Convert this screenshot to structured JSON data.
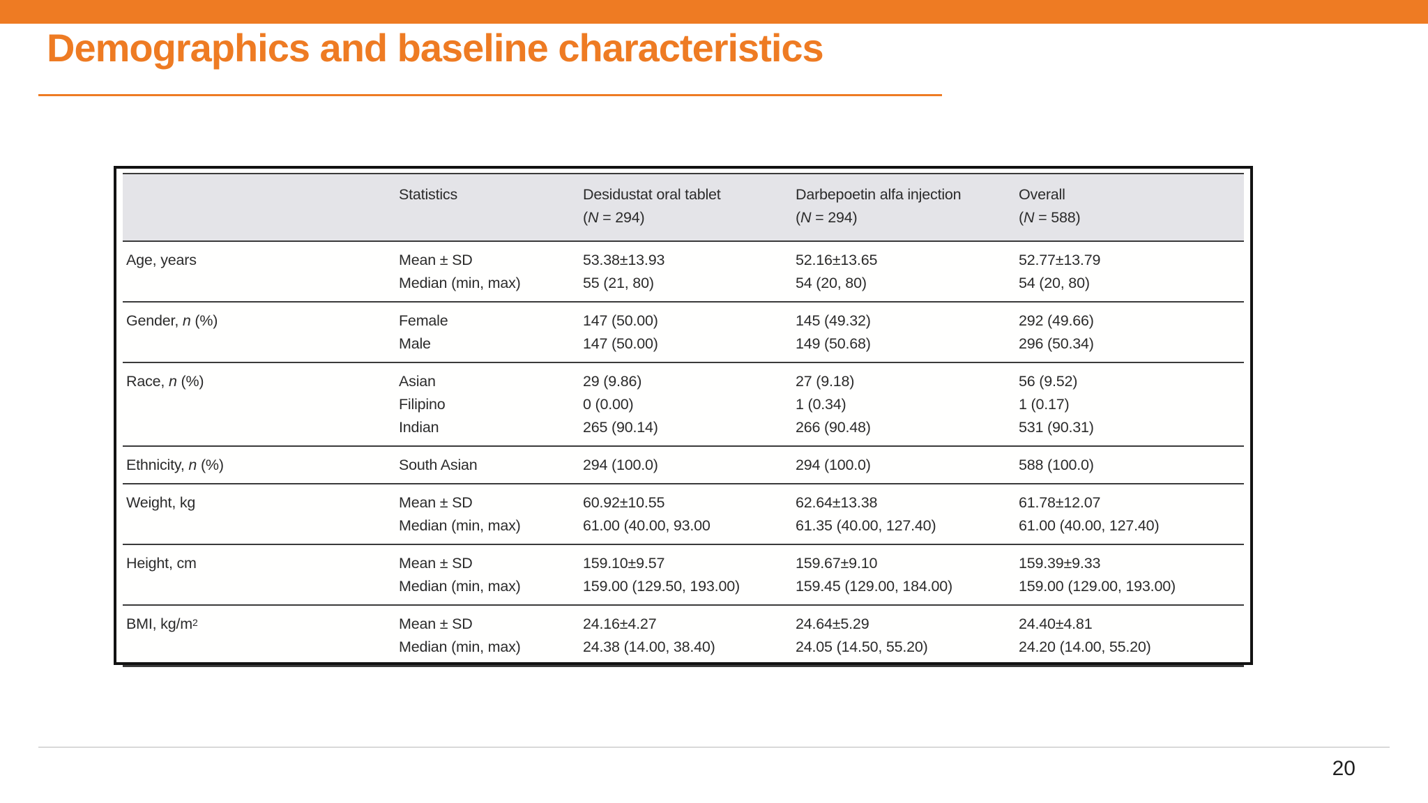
{
  "slide": {
    "title": "Demographics and baseline characteristics",
    "page_number": "20"
  },
  "colors": {
    "accent": "#EE7B23",
    "header_bg": "#E4E4E8",
    "frame": "#121212",
    "rule": "#3A3A3A",
    "table_text": "#2B2B2B",
    "footer_line": "#D9D9D9",
    "page_text": "#1F1F1F"
  },
  "table": {
    "columns": {
      "statistics": {
        "title": "Statistics"
      },
      "desidustat": {
        "title": "Desidustat oral tablet",
        "n_open": "(",
        "n_sym": "N",
        "n_rest": " = 294)"
      },
      "darbepoetin": {
        "title": "Darbepoetin alfa injection",
        "n_open": "(",
        "n_sym": "N",
        "n_rest": " = 294)"
      },
      "overall": {
        "title": "Overall",
        "n_open": "(",
        "n_sym": "N",
        "n_rest": " = 588)"
      }
    },
    "rows": [
      {
        "label": {
          "pre": "Age, years"
        },
        "stats": [
          "Mean ± SD",
          "Median (min, max)"
        ],
        "c1": [
          "53.38±13.93",
          "55 (21, 80)"
        ],
        "c2": [
          "52.16±13.65",
          "54 (20, 80)"
        ],
        "c3": [
          "52.77±13.79",
          "54 (20, 80)"
        ]
      },
      {
        "label": {
          "pre": "Gender, ",
          "it": "n",
          "post": " (%)"
        },
        "stats": [
          "Female",
          "Male"
        ],
        "c1": [
          "147 (50.00)",
          "147 (50.00)"
        ],
        "c2": [
          "145 (49.32)",
          "149 (50.68)"
        ],
        "c3": [
          "292 (49.66)",
          "296 (50.34)"
        ]
      },
      {
        "label": {
          "pre": "Race, ",
          "it": "n",
          "post": " (%)"
        },
        "stats": [
          "Asian",
          "Filipino",
          "Indian"
        ],
        "c1": [
          "29 (9.86)",
          "0 (0.00)",
          "265 (90.14)"
        ],
        "c2": [
          "27 (9.18)",
          "1 (0.34)",
          "266 (90.48)"
        ],
        "c3": [
          "56 (9.52)",
          "1 (0.17)",
          "531 (90.31)"
        ]
      },
      {
        "label": {
          "pre": "Ethnicity, ",
          "it": "n",
          "post": " (%)"
        },
        "stats": [
          "South Asian"
        ],
        "c1": [
          "294 (100.0)"
        ],
        "c2": [
          "294 (100.0)"
        ],
        "c3": [
          "588 (100.0)"
        ]
      },
      {
        "label": {
          "pre": "Weight, kg"
        },
        "stats": [
          "Mean ± SD",
          "Median (min, max)"
        ],
        "c1": [
          "60.92±10.55",
          "61.00 (40.00, 93.00"
        ],
        "c2": [
          "62.64±13.38",
          "61.35 (40.00, 127.40)"
        ],
        "c3": [
          "61.78±12.07",
          "61.00 (40.00, 127.40)"
        ]
      },
      {
        "label": {
          "pre": "Height, cm"
        },
        "stats": [
          "Mean ± SD",
          "Median (min, max)"
        ],
        "c1": [
          "159.10±9.57",
          "159.00 (129.50, 193.00)"
        ],
        "c2": [
          "159.67±9.10",
          "159.45 (129.00, 184.00)"
        ],
        "c3": [
          "159.39±9.33",
          "159.00 (129.00, 193.00)"
        ]
      },
      {
        "label": {
          "pre": "BMI, kg/m",
          "sup": "2"
        },
        "stats": [
          "Mean ± SD",
          "Median (min, max)"
        ],
        "c1": [
          "24.16±4.27",
          "24.38 (14.00, 38.40)"
        ],
        "c2": [
          "24.64±5.29",
          "24.05 (14.50, 55.20)"
        ],
        "c3": [
          "24.40±4.81",
          "24.20 (14.00, 55.20)"
        ]
      }
    ]
  }
}
